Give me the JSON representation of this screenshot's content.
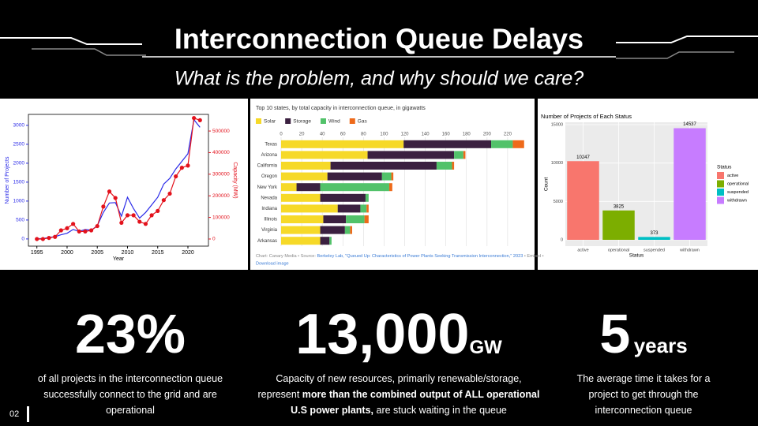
{
  "header": {
    "title": "Interconnection Queue Delays",
    "subtitle": "What is the problem, and why should we care?"
  },
  "chart_data": [
    {
      "type": "line",
      "x": [
        1995,
        1996,
        1997,
        1998,
        1999,
        2000,
        2001,
        2002,
        2003,
        2004,
        2005,
        2006,
        2007,
        2008,
        2009,
        2010,
        2011,
        2012,
        2013,
        2014,
        2015,
        2016,
        2017,
        2018,
        2019,
        2020,
        2021,
        2022
      ],
      "xlim": [
        1993.6,
        2023.4
      ],
      "xticks": [
        1995,
        2000,
        2005,
        2010,
        2015,
        2020
      ],
      "xlabel": "Year",
      "ylabel": "Number of Projects",
      "y2label": "Capacity (MW)",
      "ylim": [
        -190,
        3290
      ],
      "yticks": [
        0,
        500,
        1000,
        1500,
        2000,
        2500,
        3000
      ],
      "y2lim": [
        -33000,
        577000
      ],
      "y2ticks": [
        0,
        100000,
        200000,
        300000,
        400000,
        500000
      ],
      "series": [
        {
          "color": "#2a2ae8",
          "values": [
            5,
            10,
            40,
            60,
            110,
            150,
            250,
            200,
            250,
            230,
            350,
            700,
            950,
            960,
            600,
            1100,
            800,
            550,
            700,
            900,
            1100,
            1450,
            1600,
            1850,
            2050,
            2250,
            3150,
            2950
          ]
        },
        {
          "color": "#e3121c",
          "axis": "y2",
          "markers": true,
          "values": [
            0,
            0,
            5000,
            10000,
            40000,
            50000,
            70000,
            35000,
            35000,
            40000,
            60000,
            150000,
            220000,
            190000,
            75000,
            110000,
            110000,
            80000,
            70000,
            110000,
            130000,
            180000,
            210000,
            290000,
            330000,
            340000,
            560000,
            550000
          ]
        }
      ]
    },
    {
      "type": "bar",
      "orientation": "horizontal",
      "stacked": true,
      "title": "Top 10 states, by total capacity in interconnection queue, in gigawatts",
      "categories": [
        "Texas",
        "Arizona",
        "California",
        "Oregon",
        "New York",
        "Nevada",
        "Indiana",
        "Illinois",
        "Virginia",
        "Arkansas"
      ],
      "xlim": [
        0,
        240
      ],
      "xticks": [
        0,
        20,
        40,
        60,
        80,
        100,
        120,
        140,
        160,
        180,
        200,
        220
      ],
      "grid": true,
      "series": [
        {
          "name": "Solar",
          "color": "#f6d928",
          "values": [
            119,
            84,
            48,
            45,
            15,
            38,
            55,
            41,
            38,
            38
          ]
        },
        {
          "name": "Storage",
          "color": "#3b2040",
          "values": [
            85,
            84,
            103,
            53,
            23,
            44,
            22,
            22,
            24,
            9
          ]
        },
        {
          "name": "Wind",
          "color": "#52c26a",
          "values": [
            21,
            9,
            15,
            9,
            67,
            3,
            6,
            18,
            5,
            2
          ]
        },
        {
          "name": "Gas",
          "color": "#ee6a1a",
          "values": [
            11,
            2,
            2,
            2,
            3,
            0,
            2,
            4,
            2,
            0
          ]
        }
      ],
      "source": "Chart: Canary Media • Source: ",
      "source_link": "Berkeley Lab, \"Queued Up: Characteristics of Power Plants Seeking Transmission Interconnection,\" 2023",
      "embed": "• Embed •",
      "download": "Download image"
    },
    {
      "type": "bar",
      "title": "Number of Projects of Each Status",
      "categories": [
        "active",
        "operational",
        "suspended",
        "withdrawn"
      ],
      "values": [
        10247,
        3825,
        373,
        14537
      ],
      "colors": [
        "#f8766d",
        "#7cae00",
        "#00bfc4",
        "#c77cff"
      ],
      "ylim": [
        -822,
        15308
      ],
      "yticks": [
        0,
        5000,
        10000,
        15000
      ],
      "grid": true,
      "xlabel": "Status",
      "ylabel": "Count",
      "legend_title": "Status"
    }
  ],
  "stats": [
    {
      "figure": "23%",
      "description": [
        "of all projects in the interconnection queue successfully connect to the grid and are operational"
      ]
    },
    {
      "figure": "13,000",
      "unit": "GW",
      "description": [
        "Capacity of new resources, primarily renewable/storage, represent ",
        "more than the combined output of ALL operational U.S power plants,",
        " are stuck waiting in the queue"
      ]
    },
    {
      "figure": "5",
      "unit": "years",
      "description": [
        "The average time it takes for a project to get through the interconnection queue"
      ]
    }
  ],
  "page_number": "02"
}
